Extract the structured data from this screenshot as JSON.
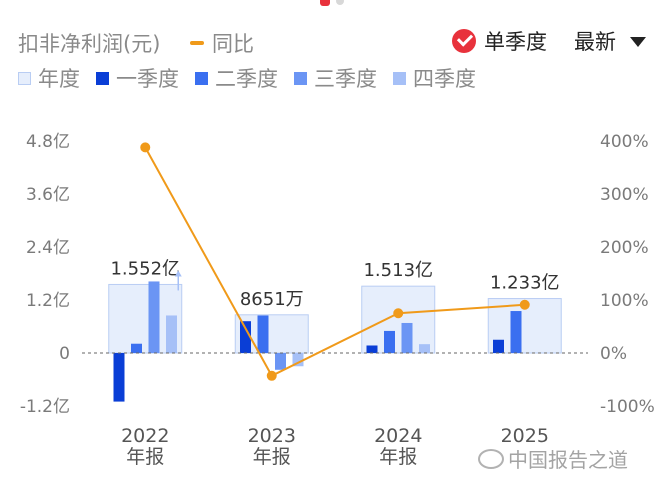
{
  "header": {
    "title": "扣非净利润(元)",
    "yoy_legend": "同比",
    "single_quarter_label": "单季度",
    "latest_label": "最新"
  },
  "legend": [
    "年度",
    "一季度",
    "二季度",
    "三季度",
    "四季度"
  ],
  "colors": {
    "year_fill": "#e6eefc",
    "year_stroke": "#b9cdf3",
    "q1": "#0a3ed6",
    "q2": "#3a6ff0",
    "q3": "#6b95f4",
    "q4": "#a6c0f7",
    "yoy_line": "#f09a1a",
    "accent_red": "#e8323c"
  },
  "watermark": "中国报告之道",
  "chart_data": {
    "type": "bar",
    "categories": [
      "2022",
      "2023",
      "2024",
      "2025"
    ],
    "category_sublabels": [
      "年报",
      "年报",
      "年报",
      ""
    ],
    "left_axis": {
      "unit": "亿",
      "ylim": [
        -1.2,
        4.8
      ],
      "ticks": [
        "4.8亿",
        "3.6亿",
        "2.4亿",
        "1.2亿",
        "0",
        "-1.2亿"
      ],
      "tick_values": [
        4.8,
        3.6,
        2.4,
        1.2,
        0,
        -1.2
      ]
    },
    "right_axis": {
      "ylim": [
        -100,
        400
      ],
      "ticks": [
        "400%",
        "300%",
        "200%",
        "100%",
        "0%",
        "-100%"
      ],
      "tick_values": [
        400,
        300,
        200,
        100,
        0,
        -100
      ]
    },
    "annual": {
      "values": [
        1.552,
        0.8651,
        1.513,
        1.233
      ],
      "labels": [
        "1.552亿",
        "8651万",
        "1.513亿",
        "1.233亿"
      ]
    },
    "quarterly": [
      {
        "name": "一季度",
        "values": [
          -1.1,
          0.72,
          0.17,
          0.3
        ]
      },
      {
        "name": "二季度",
        "values": [
          0.21,
          0.85,
          0.5,
          0.95
        ]
      },
      {
        "name": "三季度",
        "values": [
          1.62,
          -0.38,
          0.68,
          null
        ]
      },
      {
        "name": "四季度",
        "values": [
          0.85,
          -0.3,
          0.2,
          null
        ]
      }
    ],
    "yoy": {
      "name": "同比",
      "values": [
        388,
        -43,
        75,
        91
      ],
      "unit": "%"
    },
    "grid": false,
    "zero_line": "dashed"
  }
}
